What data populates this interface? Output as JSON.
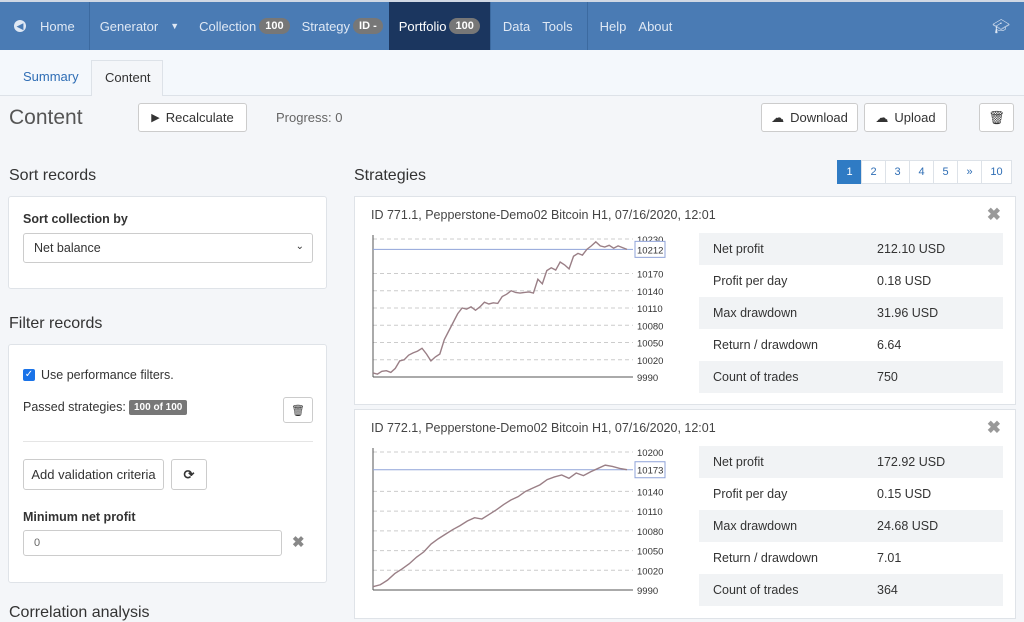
{
  "nav": {
    "home": "Home",
    "generator": "Generator",
    "collection": "Collection",
    "collection_badge": "100",
    "strategy": "Strategy",
    "strategy_badge": "ID -",
    "portfolio": "Portfolio",
    "portfolio_badge": "100",
    "data": "Data",
    "tools": "Tools",
    "help": "Help",
    "about": "About"
  },
  "tabs": {
    "summary": "Summary",
    "content": "Content"
  },
  "header": {
    "title": "Content",
    "recalculate": "Recalculate",
    "progress": "Progress: 0",
    "download": "Download",
    "upload": "Upload"
  },
  "sort": {
    "heading": "Sort records",
    "label": "Sort collection by",
    "value": "Net balance"
  },
  "filter": {
    "heading": "Filter records",
    "use_filters": "Use performance filters.",
    "use_filters_checked": true,
    "passed_label": "Passed strategies:",
    "passed_badge": "100 of 100",
    "add_criteria": "Add validation criteria",
    "min_profit_label": "Minimum net profit",
    "min_profit_value": "0"
  },
  "next_heading": "Correlation analysis",
  "strategies": {
    "heading": "Strategies",
    "pages": [
      "1",
      "2",
      "3",
      "4",
      "5",
      "»",
      "10"
    ],
    "active_page": "1",
    "items": [
      {
        "title": "ID 771.1, Pepperstone-Demo02 Bitcoin H1, 07/16/2020, 12:01",
        "stats": [
          [
            "Net profit",
            "212.10 USD"
          ],
          [
            "Profit per day",
            "0.18 USD"
          ],
          [
            "Max drawdown",
            "31.96 USD"
          ],
          [
            "Return / drawdown",
            "6.64"
          ],
          [
            "Count of trades",
            "750"
          ]
        ],
        "chart_data": {
          "type": "line",
          "ylim": [
            9990,
            10230
          ],
          "yticks": [
            "10230",
            "10170",
            "10140",
            "10110",
            "10080",
            "10050",
            "10020",
            "9990"
          ],
          "last_label": "10212",
          "last": 10212,
          "values": [
            9997,
            9995,
            10000,
            10001,
            9998,
            10005,
            10018,
            10020,
            10028,
            10032,
            10035,
            10040,
            10030,
            10018,
            10025,
            10030,
            10055,
            10070,
            10085,
            10100,
            10110,
            10108,
            10112,
            10106,
            10112,
            10120,
            10117,
            10119,
            10118,
            10130,
            10134,
            10140,
            10137,
            10136,
            10137,
            10138,
            10136,
            10160,
            10152,
            10175,
            10180,
            10176,
            10190,
            10185,
            10178,
            10200,
            10205,
            10202,
            10212,
            10218,
            10225,
            10218,
            10216,
            10219,
            10214,
            10218,
            10215,
            10212
          ]
        }
      },
      {
        "title": "ID 772.1, Pepperstone-Demo02 Bitcoin H1, 07/16/2020, 12:01",
        "stats": [
          [
            "Net profit",
            "172.92 USD"
          ],
          [
            "Profit per day",
            "0.15 USD"
          ],
          [
            "Max drawdown",
            "24.68 USD"
          ],
          [
            "Return / drawdown",
            "7.01"
          ],
          [
            "Count of trades",
            "364"
          ]
        ],
        "chart_data": {
          "type": "line",
          "ylim": [
            9990,
            10200
          ],
          "yticks": [
            "10200",
            "10140",
            "10110",
            "10080",
            "10050",
            "10020",
            "9990"
          ],
          "last_label": "10173",
          "last": 10173,
          "values": [
            9995,
            9998,
            10005,
            10015,
            10022,
            10030,
            10040,
            10048,
            10060,
            10068,
            10075,
            10082,
            10088,
            10095,
            10100,
            10098,
            10105,
            10112,
            10120,
            10127,
            10132,
            10140,
            10145,
            10150,
            10158,
            10162,
            10165,
            10160,
            10168,
            10164,
            10170,
            10175,
            10180,
            10178,
            10175,
            10173
          ]
        }
      }
    ]
  }
}
